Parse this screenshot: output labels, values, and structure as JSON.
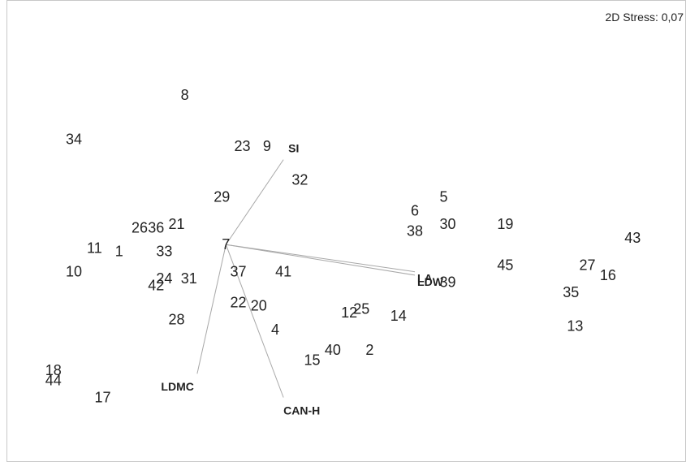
{
  "chart_data": {
    "type": "scatter",
    "title": "",
    "xlabel": "",
    "ylabel": "",
    "grid": false,
    "xlim": [
      -5.5,
      11.2
    ],
    "ylim": [
      -6.2,
      7.4
    ],
    "stress_label": "2D Stress: 0,07",
    "points": [
      {
        "label": "1",
        "x": -2.6,
        "y": 0.0
      },
      {
        "label": "2",
        "x": 3.5,
        "y": -2.9
      },
      {
        "label": "4",
        "x": 1.2,
        "y": -2.3
      },
      {
        "label": "5",
        "x": 5.3,
        "y": 1.6
      },
      {
        "label": "6",
        "x": 4.6,
        "y": 1.2
      },
      {
        "label": "7",
        "x": 0.0,
        "y": 0.2
      },
      {
        "label": "8",
        "x": -1.0,
        "y": 4.6
      },
      {
        "label": "9",
        "x": 1.0,
        "y": 3.1
      },
      {
        "label": "10",
        "x": -3.7,
        "y": -0.6
      },
      {
        "label": "11",
        "x": -3.2,
        "y": 0.1
      },
      {
        "label": "12",
        "x": 3.0,
        "y": -1.8
      },
      {
        "label": "13",
        "x": 8.5,
        "y": -2.2
      },
      {
        "label": "14",
        "x": 4.2,
        "y": -1.9
      },
      {
        "label": "15",
        "x": 2.1,
        "y": -3.2
      },
      {
        "label": "16",
        "x": 9.3,
        "y": -0.7
      },
      {
        "label": "17",
        "x": -3.0,
        "y": -4.3
      },
      {
        "label": "18",
        "x": -4.2,
        "y": -3.5
      },
      {
        "label": "19",
        "x": 6.8,
        "y": 0.8
      },
      {
        "label": "20",
        "x": 0.8,
        "y": -1.6
      },
      {
        "label": "21",
        "x": -1.2,
        "y": 0.8
      },
      {
        "label": "22",
        "x": 0.3,
        "y": -1.5
      },
      {
        "label": "23",
        "x": 0.4,
        "y": 3.1
      },
      {
        "label": "24",
        "x": -1.5,
        "y": -0.8
      },
      {
        "label": "25",
        "x": 3.3,
        "y": -1.7
      },
      {
        "label": "26",
        "x": -2.1,
        "y": 0.7
      },
      {
        "label": "27",
        "x": 8.8,
        "y": -0.4
      },
      {
        "label": "28",
        "x": -1.2,
        "y": -2.0
      },
      {
        "label": "29",
        "x": -0.1,
        "y": 1.6
      },
      {
        "label": "30",
        "x": 5.4,
        "y": 0.8
      },
      {
        "label": "31",
        "x": -0.9,
        "y": -0.8
      },
      {
        "label": "32",
        "x": 1.8,
        "y": 2.1
      },
      {
        "label": "33",
        "x": -1.5,
        "y": 0.0
      },
      {
        "label": "34",
        "x": -3.7,
        "y": 3.3
      },
      {
        "label": "35",
        "x": 8.4,
        "y": -1.2
      },
      {
        "label": "36",
        "x": -1.7,
        "y": 0.7
      },
      {
        "label": "37",
        "x": 0.3,
        "y": -0.6
      },
      {
        "label": "38",
        "x": 4.6,
        "y": 0.6
      },
      {
        "label": "39",
        "x": 5.4,
        "y": -0.9
      },
      {
        "label": "40",
        "x": 2.6,
        "y": -2.9
      },
      {
        "label": "41",
        "x": 1.4,
        "y": -0.6
      },
      {
        "label": "42",
        "x": -1.7,
        "y": -1.0
      },
      {
        "label": "43",
        "x": 9.9,
        "y": 0.4
      },
      {
        "label": "44",
        "x": -4.2,
        "y": -3.8
      },
      {
        "label": "45",
        "x": 6.8,
        "y": -0.4
      }
    ],
    "vectors": [
      {
        "label": "SI",
        "x": 1.4,
        "y": 2.7
      },
      {
        "label": "LA",
        "x": 4.6,
        "y": -0.6
      },
      {
        "label": "LDW",
        "x": 4.6,
        "y": -0.7
      },
      {
        "label": "LDMC",
        "x": -0.7,
        "y": -3.6
      },
      {
        "label": "CAN-H",
        "x": 1.4,
        "y": -4.3
      }
    ]
  }
}
